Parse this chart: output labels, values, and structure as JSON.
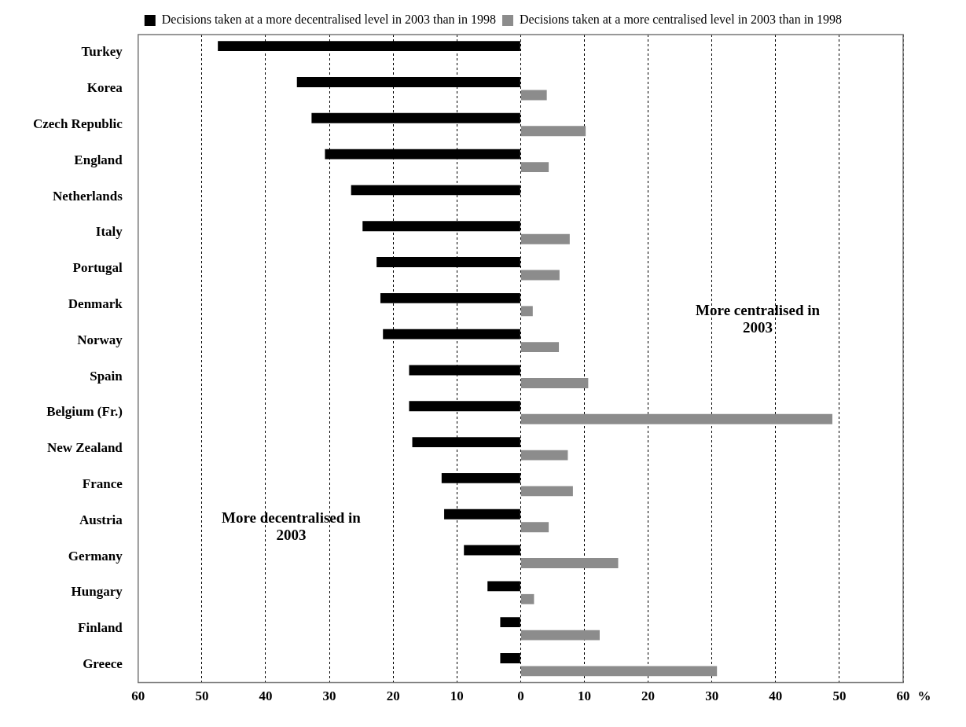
{
  "chart_data": {
    "type": "bar",
    "orientation": "horizontal",
    "xlabel": "%",
    "categories": [
      "Turkey",
      "Korea",
      "Czech Republic",
      "England",
      "Netherlands",
      "Italy",
      "Portugal",
      "Denmark",
      "Norway",
      "Spain",
      "Belgium (Fr.)",
      "New Zealand",
      "France",
      "Austria",
      "Germany",
      "Hungary",
      "Finland",
      "Greece"
    ],
    "series": [
      {
        "name": "Decisions taken at a more decentralised level in 2003 than in 1998",
        "color": "#000000",
        "values": [
          -47.5,
          -35.1,
          -32.8,
          -30.7,
          -26.6,
          -24.8,
          -22.6,
          -22.0,
          -21.6,
          -17.5,
          -17.5,
          -17.0,
          -12.4,
          -12.0,
          -8.9,
          -5.2,
          -3.2,
          -3.2
        ]
      },
      {
        "name": "Decisions taken at a more centralised level in 2003 than in 1998",
        "color": "#8c8c8c",
        "values": [
          null,
          4.1,
          10.2,
          4.4,
          null,
          7.7,
          6.1,
          1.9,
          6.0,
          10.6,
          48.9,
          7.4,
          8.2,
          4.4,
          15.3,
          2.1,
          12.4,
          30.8
        ]
      }
    ],
    "xlim": [
      -60,
      60
    ],
    "xticks": [
      {
        "value": -60,
        "label": "60"
      },
      {
        "value": -50,
        "label": "50"
      },
      {
        "value": -40,
        "label": "40"
      },
      {
        "value": -30,
        "label": "30"
      },
      {
        "value": -20,
        "label": "20"
      },
      {
        "value": -10,
        "label": "10"
      },
      0,
      10,
      20,
      30,
      40,
      50,
      60
    ],
    "grid": "x",
    "legend": "top",
    "annotations": [
      "More decentralised in 2003",
      "More centralised in 2003"
    ]
  }
}
